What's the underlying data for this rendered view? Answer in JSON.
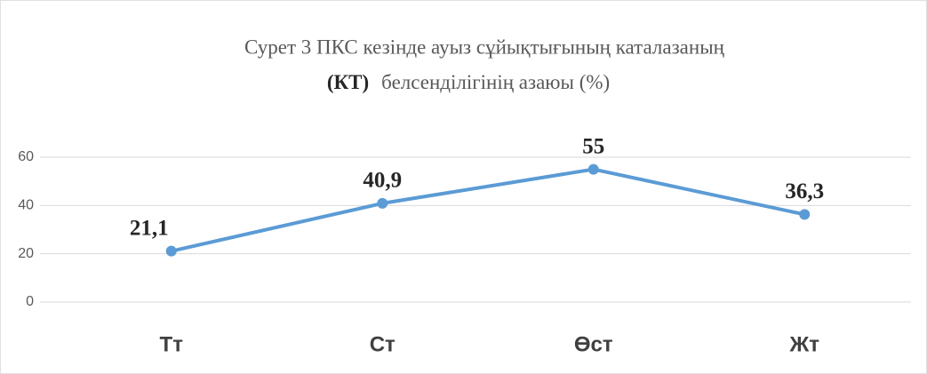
{
  "chart_data": {
    "type": "line",
    "title": [
      "Сурет 3 ПКС  кезінде ауыз сұйықтығының каталазаның",
      "(КТ)",
      "белсенділігінің  азаюы (%)"
    ],
    "categories": [
      "Тт",
      "Ст",
      "Өст",
      "Жт"
    ],
    "values": [
      21.1,
      40.9,
      55,
      36.3
    ],
    "value_labels": [
      "21,1",
      "40,9",
      "55",
      "36,3"
    ],
    "color": "#5b9bd5",
    "ylim": [
      0,
      60
    ],
    "yticks": [
      0,
      20,
      40,
      60
    ],
    "grid": true
  }
}
